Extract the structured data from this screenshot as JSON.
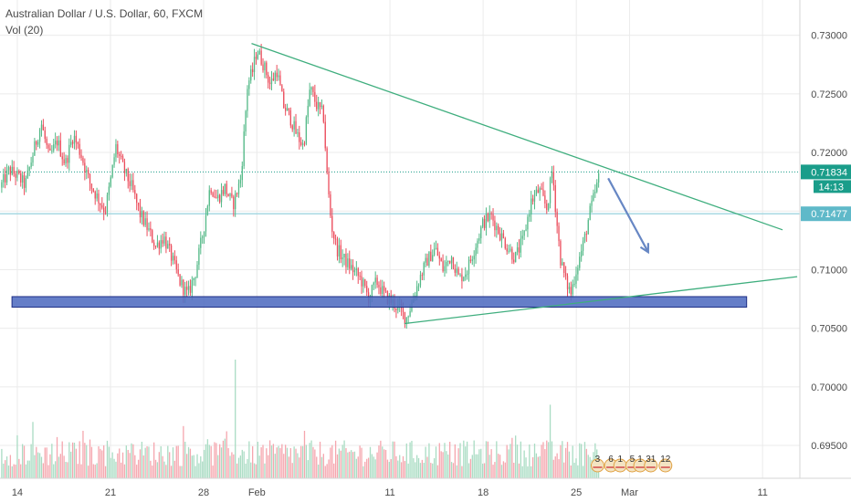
{
  "header": {
    "title": "Australian Dollar / U.S. Dollar, 60, FXCM",
    "volume_label": "Vol (20)"
  },
  "colors": {
    "up": "#53b987",
    "down": "#eb4d5c",
    "up_volume": "#a9dcc3",
    "down_volume": "#f5a6ae",
    "trendline": "#3fae7e",
    "support_zone": "#5470c2",
    "arrow": "#6787c4",
    "last_price_line": "#1a9d8a",
    "level_line": "#9fd6e0",
    "axis_text": "#4a4a4a",
    "grid": "#ebebeb"
  },
  "chart_data": {
    "type": "candlestick",
    "title": "Australian Dollar / U.S. Dollar, 60, FXCM",
    "interval": "60",
    "ylim": [
      0.6922,
      0.7327
    ],
    "y_ticks": [
      "0.73000",
      "0.72500",
      "0.72000",
      "0.71500",
      "0.71000",
      "0.70500",
      "0.70000",
      "0.69500"
    ],
    "x_ticks": [
      {
        "label": "14",
        "day": 0
      },
      {
        "label": "21",
        "day": 7
      },
      {
        "label": "28",
        "day": 14
      },
      {
        "label": "Feb",
        "day": 18
      },
      {
        "label": "11",
        "day": 28
      },
      {
        "label": "18",
        "day": 35
      },
      {
        "label": "25",
        "day": 42
      },
      {
        "label": "Mar",
        "day": 46
      },
      {
        "label": "11",
        "day": 56
      }
    ],
    "x_range_days": [
      -1.3,
      58.8
    ],
    "last_price": {
      "value": 0.71834,
      "label": "0.71834",
      "countdown": "14:13"
    },
    "level": {
      "value": 0.71477,
      "label": "0.71477"
    },
    "price_path": [
      [
        -1.3,
        0.717
      ],
      [
        -0.6,
        0.7185
      ],
      [
        0.0,
        0.718
      ],
      [
        0.6,
        0.7172
      ],
      [
        1.2,
        0.72
      ],
      [
        1.8,
        0.7225
      ],
      [
        2.4,
        0.7195
      ],
      [
        3.0,
        0.721
      ],
      [
        3.6,
        0.719
      ],
      [
        4.2,
        0.7215
      ],
      [
        4.8,
        0.7198
      ],
      [
        5.4,
        0.7175
      ],
      [
        6.0,
        0.7162
      ],
      [
        6.6,
        0.715
      ],
      [
        7.0,
        0.7175
      ],
      [
        7.4,
        0.7205
      ],
      [
        8.0,
        0.7185
      ],
      [
        8.6,
        0.717
      ],
      [
        9.2,
        0.7148
      ],
      [
        9.8,
        0.7135
      ],
      [
        10.4,
        0.712
      ],
      [
        11.0,
        0.7128
      ],
      [
        11.6,
        0.711
      ],
      [
        12.2,
        0.709
      ],
      [
        12.8,
        0.7078
      ],
      [
        13.4,
        0.7098
      ],
      [
        14.0,
        0.7135
      ],
      [
        14.5,
        0.7172
      ],
      [
        15.0,
        0.716
      ],
      [
        15.6,
        0.717
      ],
      [
        16.2,
        0.7155
      ],
      [
        16.8,
        0.7178
      ],
      [
        17.0,
        0.721
      ],
      [
        17.3,
        0.7258
      ],
      [
        17.7,
        0.727
      ],
      [
        18.0,
        0.7288
      ],
      [
        18.5,
        0.7275
      ],
      [
        19.0,
        0.7258
      ],
      [
        19.5,
        0.727
      ],
      [
        20.0,
        0.724
      ],
      [
        20.5,
        0.723
      ],
      [
        21.0,
        0.7215
      ],
      [
        21.5,
        0.7205
      ],
      [
        22.0,
        0.7255
      ],
      [
        22.5,
        0.724
      ],
      [
        23.0,
        0.7232
      ],
      [
        23.3,
        0.7175
      ],
      [
        23.6,
        0.7138
      ],
      [
        24.0,
        0.7118
      ],
      [
        24.6,
        0.7108
      ],
      [
        25.2,
        0.71
      ],
      [
        25.8,
        0.7092
      ],
      [
        26.4,
        0.7076
      ],
      [
        27.0,
        0.709
      ],
      [
        27.6,
        0.7078
      ],
      [
        28.2,
        0.7072
      ],
      [
        28.8,
        0.7065
      ],
      [
        29.2,
        0.7058
      ],
      [
        29.6,
        0.707
      ],
      [
        30.2,
        0.7092
      ],
      [
        30.8,
        0.7108
      ],
      [
        31.4,
        0.7118
      ],
      [
        32.0,
        0.71
      ],
      [
        32.6,
        0.7112
      ],
      [
        33.2,
        0.7092
      ],
      [
        33.8,
        0.71
      ],
      [
        34.4,
        0.712
      ],
      [
        35.0,
        0.714
      ],
      [
        35.6,
        0.7146
      ],
      [
        36.2,
        0.7132
      ],
      [
        36.8,
        0.712
      ],
      [
        37.4,
        0.711
      ],
      [
        38.0,
        0.7125
      ],
      [
        38.6,
        0.7158
      ],
      [
        39.2,
        0.7168
      ],
      [
        39.8,
        0.7152
      ],
      [
        40.2,
        0.7186
      ],
      [
        40.5,
        0.7145
      ],
      [
        40.8,
        0.711
      ],
      [
        41.2,
        0.709
      ],
      [
        41.6,
        0.708
      ],
      [
        42.0,
        0.71
      ],
      [
        42.6,
        0.7125
      ],
      [
        43.0,
        0.7148
      ],
      [
        43.4,
        0.7165
      ],
      [
        43.8,
        0.71834
      ]
    ],
    "volume_spikes": [
      {
        "day": 16.4,
        "value": 1.0
      },
      {
        "day": 40.0,
        "value": 0.62
      },
      {
        "day": 12.5,
        "value": 0.44
      },
      {
        "day": 5.0,
        "value": 0.4
      },
      {
        "day": 21.6,
        "value": 0.4
      },
      {
        "day": 37.4,
        "value": 0.36
      }
    ],
    "annotations": {
      "resistance_trendline": [
        [
          17.6,
          0.7293
        ],
        [
          57.5,
          0.7134
        ]
      ],
      "support_trendline": [
        [
          29.1,
          0.7054
        ],
        [
          58.6,
          0.7094
        ]
      ],
      "support_zone": {
        "day_from": -0.4,
        "day_to": 54.8,
        "price_from": 0.7068,
        "price_to": 0.7077
      },
      "projection_arrow": [
        [
          44.4,
          0.7178
        ],
        [
          47.4,
          0.7115
        ]
      ]
    },
    "event_markers": [
      {
        "label": "3",
        "day": 43.6
      },
      {
        "label": "6",
        "day": 44.6
      },
      {
        "label": "1",
        "day": 45.3
      },
      {
        "label": "5",
        "day": 46.2
      },
      {
        "label": "1",
        "day": 46.8
      },
      {
        "label": "31",
        "day": 47.6
      },
      {
        "label": "12",
        "day": 48.7
      }
    ]
  }
}
